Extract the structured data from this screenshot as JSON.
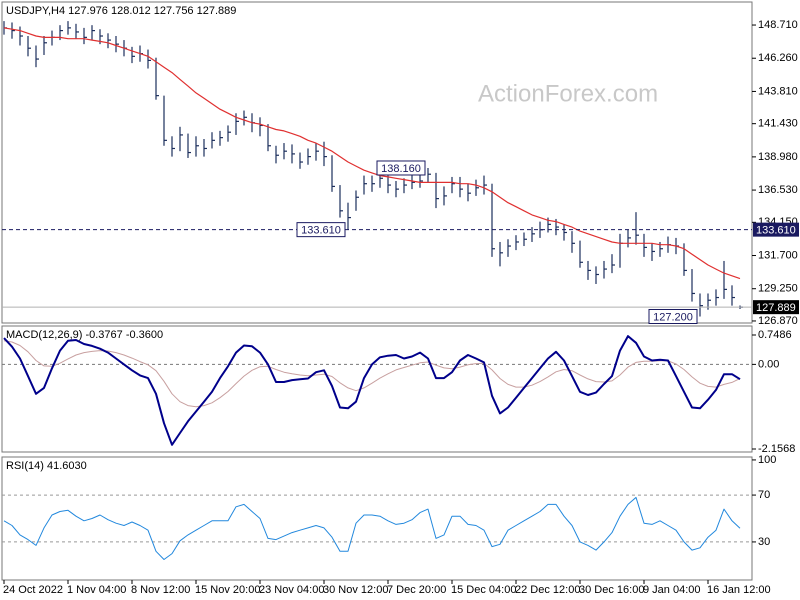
{
  "chart_data": [
    {
      "type": "ohlc",
      "title": "USDJPY,H4  127.976 128.012 127.756 127.889",
      "watermark": "ActionForex.com",
      "bar_color": "#1c2e5c",
      "ma_color": "#e03030",
      "ylim": [
        126.72,
        150.41
      ],
      "yticks": [
        {
          "value": 148.71,
          "label": "148.710"
        },
        {
          "value": 146.26,
          "label": "146.260"
        },
        {
          "value": 143.81,
          "label": "143.810"
        },
        {
          "value": 141.43,
          "label": "141.430"
        },
        {
          "value": 138.98,
          "label": "138.980"
        },
        {
          "value": 136.53,
          "label": "136.530"
        },
        {
          "value": 134.15,
          "label": "134.150"
        },
        {
          "value": 131.7,
          "label": "131.700"
        },
        {
          "value": 129.25,
          "label": "129.250"
        },
        {
          "value": 126.87,
          "label": "126.870"
        }
      ],
      "high": [
        149.0,
        148.9,
        148.6,
        147.9,
        147.2,
        147.9,
        148.3,
        148.7,
        149.0,
        148.8,
        148.5,
        148.7,
        148.4,
        148.1,
        147.9,
        147.6,
        147.1,
        147.2,
        146.9,
        146.3,
        143.5,
        140.5,
        141.2,
        140.7,
        140.5,
        140.3,
        140.8,
        140.9,
        141.3,
        142.2,
        142.4,
        142.2,
        141.9,
        141.4,
        139.8,
        140.0,
        139.9,
        139.3,
        139.6,
        140.0,
        140.1,
        139.1,
        136.9,
        135.6,
        136.5,
        137.6,
        137.6,
        137.9,
        137.6,
        137.2,
        137.4,
        137.7,
        137.9,
        138.16,
        137.8,
        136.8,
        137.5,
        137.5,
        137.0,
        137.3,
        137.6,
        137.0,
        132.7,
        132.9,
        133.2,
        133.4,
        133.8,
        134.2,
        134.5,
        134.4,
        134.0,
        133.5,
        132.8,
        131.3,
        130.9,
        131.3,
        131.8,
        133.3,
        133.6,
        134.9,
        133.3,
        132.6,
        132.7,
        133.1,
        133.0,
        132.6,
        130.7,
        128.9,
        128.9,
        129.2,
        131.3,
        129.5,
        128.012
      ],
      "low": [
        148.0,
        147.7,
        147.2,
        146.4,
        145.6,
        146.5,
        147.2,
        147.6,
        148.0,
        147.7,
        147.3,
        147.6,
        147.3,
        147.0,
        146.7,
        146.4,
        145.9,
        146.0,
        145.5,
        143.2,
        139.8,
        139.0,
        139.4,
        138.9,
        139.0,
        139.0,
        139.6,
        139.8,
        140.1,
        140.6,
        141.3,
        140.8,
        140.5,
        139.4,
        138.5,
        138.8,
        138.5,
        138.1,
        138.4,
        138.7,
        138.3,
        136.4,
        134.5,
        133.61,
        135.0,
        136.2,
        136.4,
        136.7,
        136.3,
        136.0,
        136.3,
        136.6,
        136.7,
        137.1,
        135.2,
        135.4,
        136.3,
        136.0,
        135.7,
        136.1,
        136.2,
        131.6,
        130.9,
        131.6,
        132.1,
        132.4,
        132.7,
        133.0,
        133.4,
        133.2,
        132.8,
        131.9,
        130.8,
        129.9,
        129.6,
        130.0,
        130.4,
        130.8,
        132.3,
        132.5,
        131.6,
        131.3,
        131.6,
        131.9,
        131.8,
        130.2,
        128.3,
        127.2,
        127.7,
        128.0,
        128.5,
        128.0,
        127.756
      ],
      "close": [
        148.5,
        148.3,
        147.9,
        147.0,
        146.2,
        147.4,
        147.8,
        148.3,
        148.5,
        148.2,
        147.8,
        148.3,
        147.9,
        147.6,
        147.3,
        147.0,
        146.4,
        146.6,
        146.1,
        143.5,
        140.2,
        139.6,
        140.6,
        139.3,
        139.8,
        139.6,
        140.2,
        140.4,
        140.8,
        141.6,
        141.9,
        141.5,
        141.3,
        139.8,
        139.1,
        139.4,
        139.2,
        138.6,
        139.0,
        139.4,
        139.0,
        136.8,
        135.0,
        134.5,
        136.0,
        137.0,
        137.0,
        137.4,
        136.9,
        136.6,
        136.9,
        137.1,
        137.2,
        137.7,
        135.9,
        136.1,
        137.0,
        136.6,
        136.3,
        136.7,
        136.9,
        132.2,
        131.9,
        132.4,
        132.7,
        132.9,
        133.3,
        133.6,
        134.0,
        133.8,
        133.4,
        132.6,
        131.2,
        130.6,
        130.3,
        130.7,
        131.0,
        132.6,
        133.0,
        133.2,
        132.3,
        132.0,
        132.2,
        132.5,
        132.4,
        130.6,
        128.9,
        128.0,
        128.4,
        128.6,
        129.2,
        128.6,
        127.889
      ],
      "ma": [
        148.5,
        148.4,
        148.3,
        148.1,
        147.9,
        147.8,
        147.8,
        147.8,
        147.7,
        147.7,
        147.7,
        147.6,
        147.5,
        147.4,
        147.2,
        147.0,
        146.8,
        146.6,
        146.4,
        146.0,
        145.6,
        145.2,
        144.7,
        144.2,
        143.7,
        143.3,
        142.9,
        142.5,
        142.2,
        141.9,
        141.7,
        141.5,
        141.4,
        141.2,
        141.0,
        140.9,
        140.7,
        140.5,
        140.2,
        140.0,
        139.7,
        139.4,
        139.0,
        138.6,
        138.3,
        138.0,
        137.8,
        137.6,
        137.5,
        137.4,
        137.3,
        137.2,
        137.1,
        137.1,
        137.1,
        137.1,
        137.1,
        137.0,
        137.0,
        136.9,
        136.7,
        136.4,
        136.0,
        135.6,
        135.3,
        135.0,
        134.7,
        134.5,
        134.3,
        134.2,
        134.0,
        133.8,
        133.5,
        133.3,
        133.1,
        132.9,
        132.7,
        132.6,
        132.6,
        132.6,
        132.6,
        132.6,
        132.5,
        132.5,
        132.4,
        132.2,
        131.8,
        131.4,
        131.0,
        130.7,
        130.4,
        130.2,
        130.0
      ],
      "hline": {
        "value": 133.61,
        "label": "133.610"
      },
      "last": {
        "value": 127.889,
        "label": "127.889"
      },
      "annotations": [
        {
          "value": 138.16,
          "label": "138.160"
        },
        {
          "value": 133.61,
          "label": "133.610"
        },
        {
          "value": 127.2,
          "label": "127.200"
        }
      ]
    },
    {
      "type": "macd",
      "title": "MACD(12,26,9) -0.3767 -0.3600",
      "ylim": [
        -2.233,
        0.978
      ],
      "yticks": [
        0.7486,
        {
          "value": 0,
          "label": "0.00"
        },
        -2.1568
      ],
      "levels": [
        0
      ],
      "series": [
        {
          "color": "#00008b",
          "width": 2,
          "values": [
            0.67,
            0.45,
            0.15,
            -0.3,
            -0.75,
            -0.6,
            -0.1,
            0.35,
            0.6,
            0.62,
            0.52,
            0.47,
            0.4,
            0.3,
            0.15,
            0.0,
            -0.15,
            -0.28,
            -0.35,
            -0.75,
            -1.5,
            -2.05,
            -1.75,
            -1.45,
            -1.2,
            -0.95,
            -0.7,
            -0.35,
            -0.05,
            0.3,
            0.48,
            0.46,
            0.3,
            0.0,
            -0.45,
            -0.45,
            -0.4,
            -0.38,
            -0.36,
            -0.2,
            -0.15,
            -0.55,
            -1.1,
            -1.12,
            -0.95,
            -0.35,
            0.0,
            0.18,
            0.22,
            0.24,
            0.15,
            0.2,
            0.3,
            0.15,
            -0.35,
            -0.35,
            -0.2,
            0.1,
            0.24,
            0.15,
            0.05,
            -0.8,
            -1.25,
            -1.1,
            -0.85,
            -0.6,
            -0.35,
            -0.1,
            0.15,
            0.32,
            0.1,
            -0.3,
            -0.7,
            -0.78,
            -0.72,
            -0.5,
            -0.3,
            0.35,
            0.72,
            0.55,
            0.2,
            0.1,
            0.12,
            0.1,
            -0.3,
            -0.7,
            -1.1,
            -1.12,
            -0.9,
            -0.65,
            -0.25,
            -0.25,
            -0.3767
          ]
        },
        {
          "color": "#c8a0a0",
          "width": 1,
          "values": [
            0.6,
            0.57,
            0.48,
            0.32,
            0.1,
            -0.04,
            -0.05,
            0.03,
            0.14,
            0.24,
            0.3,
            0.33,
            0.35,
            0.34,
            0.3,
            0.24,
            0.16,
            0.07,
            -0.01,
            -0.16,
            -0.43,
            -0.75,
            -0.95,
            -1.05,
            -1.08,
            -1.05,
            -0.98,
            -0.85,
            -0.69,
            -0.49,
            -0.3,
            -0.15,
            -0.06,
            -0.05,
            -0.13,
            -0.2,
            -0.24,
            -0.27,
            -0.29,
            -0.27,
            -0.25,
            -0.31,
            -0.47,
            -0.6,
            -0.67,
            -0.6,
            -0.48,
            -0.35,
            -0.24,
            -0.14,
            -0.08,
            -0.02,
            0.04,
            0.06,
            -0.02,
            -0.09,
            -0.11,
            -0.07,
            -0.01,
            0.02,
            0.03,
            -0.14,
            -0.36,
            -0.51,
            -0.58,
            -0.58,
            -0.53,
            -0.44,
            -0.32,
            -0.19,
            -0.13,
            -0.16,
            -0.27,
            -0.37,
            -0.44,
            -0.45,
            -0.42,
            -0.27,
            -0.07,
            0.05,
            0.08,
            0.08,
            0.09,
            0.09,
            0.01,
            -0.13,
            -0.32,
            -0.48,
            -0.56,
            -0.58,
            -0.51,
            -0.46,
            -0.36
          ]
        }
      ]
    },
    {
      "type": "rsi",
      "title": "RSI(14) 41.6030",
      "ylim": [
        -2.5,
        102.5
      ],
      "yticks": [
        100,
        70,
        30
      ],
      "levels": [
        70,
        30
      ],
      "color": "#2288dd",
      "values": [
        48,
        44,
        36,
        32,
        27,
        42,
        53,
        56,
        57,
        52,
        48,
        50,
        53,
        49,
        46,
        44,
        47,
        44,
        40,
        22,
        15,
        20,
        31,
        36,
        40,
        44,
        48,
        48,
        48,
        60,
        62,
        56,
        50,
        33,
        32,
        35,
        38,
        40,
        42,
        44,
        42,
        34,
        22,
        22,
        46,
        53,
        53,
        52,
        48,
        45,
        46,
        49,
        55,
        58,
        33,
        36,
        52,
        52,
        45,
        44,
        40,
        26,
        28,
        40,
        44,
        48,
        52,
        56,
        62,
        62,
        52,
        44,
        30,
        27,
        23,
        30,
        38,
        52,
        62,
        68,
        46,
        45,
        48,
        44,
        40,
        30,
        23,
        25,
        34,
        40,
        58,
        48,
        41.603
      ],
      "categories": [
        "24 Oct 2022",
        null,
        null,
        null,
        null,
        null,
        null,
        null,
        "1 Nov 04:00",
        null,
        null,
        null,
        null,
        null,
        null,
        null,
        "8 Nov 12:00",
        null,
        null,
        null,
        null,
        null,
        null,
        null,
        "15 Nov 20:00",
        null,
        null,
        null,
        null,
        null,
        null,
        null,
        "23 Nov 04:00",
        null,
        null,
        null,
        null,
        null,
        null,
        null,
        "30 Nov 12:00",
        null,
        null,
        null,
        null,
        null,
        null,
        null,
        "7 Dec 20:00",
        null,
        null,
        null,
        null,
        null,
        null,
        null,
        "15 Dec 04:00",
        null,
        null,
        null,
        null,
        null,
        null,
        null,
        "22 Dec 12:00",
        null,
        null,
        null,
        null,
        null,
        null,
        null,
        "30 Dec 16:00",
        null,
        null,
        null,
        null,
        null,
        null,
        null,
        "9 Jan 04:00",
        null,
        null,
        null,
        null,
        null,
        null,
        null,
        "16 Jan 12:00",
        null,
        null,
        null,
        null
      ]
    }
  ]
}
